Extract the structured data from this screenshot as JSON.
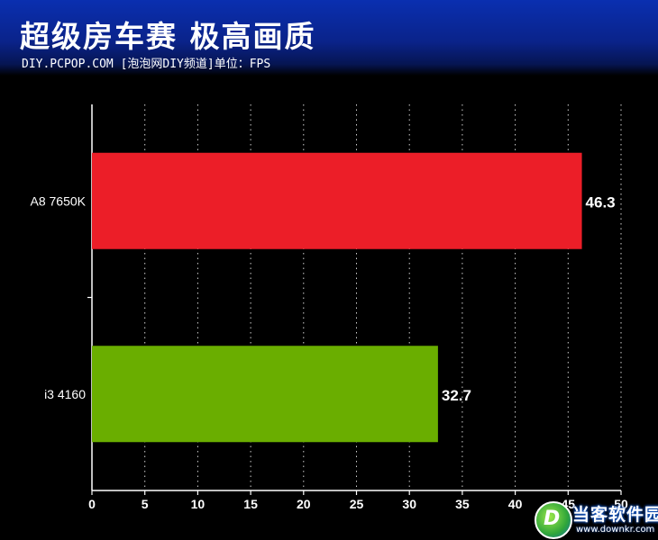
{
  "header": {
    "title": "超级房车赛  极高画质",
    "subtitle": "DIY.PCPOP.COM [泡泡网DIY频道]单位：FPS"
  },
  "watermark": {
    "logo_mark": "D",
    "name": "当客软件园",
    "url": "www.downkr.com"
  },
  "chart_data": {
    "type": "bar",
    "orientation": "horizontal",
    "title": "超级房车赛  极高画质",
    "unit": "FPS",
    "categories": [
      "A8 7650K",
      "i3 4160"
    ],
    "values": [
      46.3,
      32.7
    ],
    "value_labels": [
      "46.3",
      "32.7"
    ],
    "colors": [
      "#ec1e28",
      "#6aae00"
    ],
    "xlim": [
      0,
      50
    ],
    "xticks": [
      "0",
      "5",
      "10",
      "15",
      "20",
      "25",
      "30",
      "35",
      "40",
      "45",
      "50"
    ],
    "grid": true,
    "legend": "none"
  }
}
